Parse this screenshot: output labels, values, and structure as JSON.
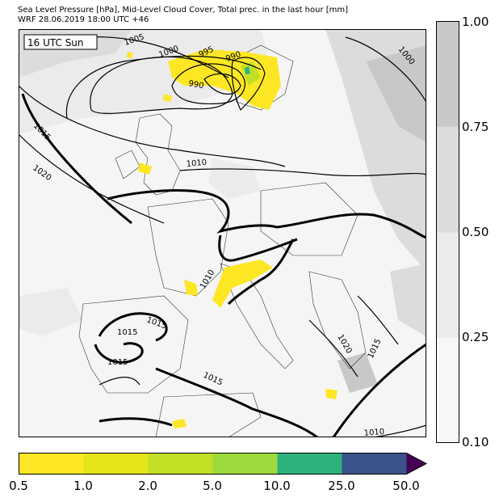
{
  "title": {
    "line1": "Sea Level Pressure [hPa], Mid-Level Cloud Cover, Total prec. in the last hour [mm]",
    "line2": "WRF 28.06.2019 18:00 UTC +46"
  },
  "time_label": "16 UTC Sun",
  "isobar_labels": [
    "1005",
    "1000",
    "995",
    "990",
    "990",
    "1000",
    "1015",
    "1020",
    "1010",
    "1010",
    "1015",
    "1015",
    "1015",
    "1015",
    "1020",
    "1015",
    "1010"
  ],
  "cloud_cover_colorbar": {
    "ticks": [
      "1.00",
      "0.75",
      "0.50",
      "0.25",
      "0.10"
    ],
    "colors": [
      "#c8c8c8",
      "#dcdcdc",
      "#ebebeb",
      "#f7f7f7"
    ]
  },
  "precip_colorbar": {
    "ticks": [
      "0.5",
      "1.0",
      "2.0",
      "5.0",
      "10.0",
      "25.0",
      "50.0"
    ],
    "colors": [
      "#fde725",
      "#e5e419",
      "#c2df23",
      "#9dd93b",
      "#2db27d",
      "#3b528b",
      "#440154"
    ]
  }
}
